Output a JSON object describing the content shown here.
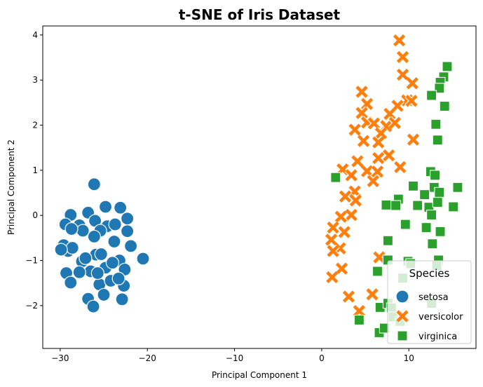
{
  "chart_data": {
    "type": "scatter",
    "title": "t-SNE of Iris Dataset",
    "xlabel": "Principal Component 1",
    "ylabel": "Principal Component 2",
    "xlim": [
      -32.0,
      17.7
    ],
    "ylim": [
      -2.95,
      4.2
    ],
    "xticks": [
      -30,
      -20,
      -10,
      0,
      10
    ],
    "xtick_labels": [
      "−30",
      "−20",
      "−10",
      "0",
      "10"
    ],
    "yticks": [
      -2,
      -1,
      0,
      1,
      2,
      3,
      4
    ],
    "ytick_labels": [
      "−2",
      "−1",
      "0",
      "1",
      "2",
      "3",
      "4"
    ],
    "grid": false,
    "legend": {
      "title": "Species",
      "position": "lower-right"
    },
    "series": [
      {
        "name": "setosa",
        "marker": "circle",
        "color": "#1f77b4",
        "points": [
          [
            -26.1,
            0.69
          ],
          [
            -28.8,
            0.01
          ],
          [
            -26.8,
            0.06
          ],
          [
            -24.8,
            0.19
          ],
          [
            -23.1,
            0.17
          ],
          [
            -29.4,
            -0.2
          ],
          [
            -27.8,
            -0.22
          ],
          [
            -26.0,
            -0.12
          ],
          [
            -24.6,
            -0.24
          ],
          [
            -22.3,
            -0.07
          ],
          [
            -27.4,
            -0.34
          ],
          [
            -25.4,
            -0.34
          ],
          [
            -23.7,
            -0.2
          ],
          [
            -22.3,
            -0.35
          ],
          [
            -26.1,
            -0.47
          ],
          [
            -28.7,
            -0.3
          ],
          [
            -29.1,
            -0.79
          ],
          [
            -29.6,
            -0.66
          ],
          [
            -28.6,
            -0.72
          ],
          [
            -27.5,
            -1.02
          ],
          [
            -25.9,
            -0.87
          ],
          [
            -25.3,
            -0.86
          ],
          [
            -23.8,
            -0.58
          ],
          [
            -21.9,
            -0.68
          ],
          [
            -20.5,
            -0.96
          ],
          [
            -23.2,
            -1.0
          ],
          [
            -22.6,
            -1.2
          ],
          [
            -24.8,
            -1.16
          ],
          [
            -26.5,
            -1.24
          ],
          [
            -27.8,
            -1.26
          ],
          [
            -29.3,
            -1.28
          ],
          [
            -28.8,
            -1.49
          ],
          [
            -25.5,
            -1.53
          ],
          [
            -24.2,
            -1.45
          ],
          [
            -22.7,
            -1.56
          ],
          [
            -23.3,
            -1.4
          ],
          [
            -25.0,
            -1.76
          ],
          [
            -26.8,
            -1.85
          ],
          [
            -26.2,
            -2.02
          ],
          [
            -22.9,
            -1.86
          ],
          [
            -29.9,
            -0.76
          ],
          [
            -25.7,
            -1.28
          ],
          [
            -24.0,
            -1.05
          ],
          [
            -27.1,
            -0.95
          ]
        ]
      },
      {
        "name": "versicolor",
        "marker": "x",
        "color": "#ff7f0e",
        "points": [
          [
            8.9,
            3.88
          ],
          [
            9.3,
            3.51
          ],
          [
            9.3,
            3.12
          ],
          [
            10.4,
            2.93
          ],
          [
            4.6,
            2.74
          ],
          [
            9.8,
            2.55
          ],
          [
            10.3,
            2.54
          ],
          [
            5.2,
            2.47
          ],
          [
            8.7,
            2.43
          ],
          [
            7.8,
            2.25
          ],
          [
            4.6,
            2.27
          ],
          [
            5.2,
            2.06
          ],
          [
            6.0,
            2.04
          ],
          [
            7.4,
            1.98
          ],
          [
            8.4,
            2.05
          ],
          [
            3.8,
            1.9
          ],
          [
            6.8,
            1.82
          ],
          [
            6.5,
            1.62
          ],
          [
            4.8,
            1.65
          ],
          [
            10.5,
            1.68
          ],
          [
            7.7,
            1.33
          ],
          [
            6.5,
            1.27
          ],
          [
            4.1,
            1.2
          ],
          [
            2.4,
            1.02
          ],
          [
            5.2,
            0.98
          ],
          [
            3.4,
            0.89
          ],
          [
            9.0,
            1.07
          ],
          [
            6.4,
            0.97
          ],
          [
            5.9,
            0.76
          ],
          [
            3.8,
            0.53
          ],
          [
            2.7,
            0.42
          ],
          [
            3.9,
            0.33
          ],
          [
            3.4,
            0.01
          ],
          [
            2.2,
            -0.03
          ],
          [
            1.3,
            -0.27
          ],
          [
            2.6,
            -0.37
          ],
          [
            1.1,
            -0.54
          ],
          [
            2.1,
            -0.73
          ],
          [
            1.3,
            -0.79
          ],
          [
            6.6,
            -0.93
          ],
          [
            2.3,
            -1.18
          ],
          [
            1.2,
            -1.37
          ],
          [
            3.1,
            -1.8
          ],
          [
            5.8,
            -1.75
          ],
          [
            4.3,
            -2.12
          ]
        ]
      },
      {
        "name": "virginica",
        "marker": "square",
        "color": "#2ca02c",
        "points": [
          [
            14.4,
            3.3
          ],
          [
            14.0,
            3.07
          ],
          [
            13.6,
            2.95
          ],
          [
            13.5,
            2.82
          ],
          [
            12.6,
            2.66
          ],
          [
            14.1,
            2.42
          ],
          [
            13.1,
            2.02
          ],
          [
            13.3,
            1.67
          ],
          [
            12.5,
            0.97
          ],
          [
            13.0,
            0.89
          ],
          [
            10.5,
            0.65
          ],
          [
            12.9,
            0.62
          ],
          [
            13.5,
            0.51
          ],
          [
            11.8,
            0.46
          ],
          [
            15.6,
            0.62
          ],
          [
            12.3,
            0.18
          ],
          [
            11.0,
            0.22
          ],
          [
            13.3,
            0.29
          ],
          [
            15.1,
            0.19
          ],
          [
            12.6,
            0.01
          ],
          [
            13.6,
            -0.36
          ],
          [
            12.0,
            -0.27
          ],
          [
            9.6,
            -0.2
          ],
          [
            12.7,
            -0.63
          ],
          [
            7.4,
            0.23
          ],
          [
            8.8,
            0.36
          ],
          [
            8.5,
            0.22
          ],
          [
            1.6,
            0.84
          ],
          [
            7.6,
            -0.56
          ],
          [
            9.9,
            -1.02
          ],
          [
            10.2,
            -1.07
          ],
          [
            13.4,
            -0.99
          ],
          [
            13.2,
            -1.12
          ],
          [
            7.6,
            -0.99
          ],
          [
            6.4,
            -1.24
          ],
          [
            9.3,
            -1.39
          ],
          [
            6.7,
            -2.04
          ],
          [
            7.6,
            -1.95
          ],
          [
            8.0,
            -2.05
          ],
          [
            8.2,
            -2.25
          ],
          [
            9.0,
            -2.35
          ],
          [
            4.3,
            -2.32
          ],
          [
            6.6,
            -2.6
          ],
          [
            7.2,
            -2.5
          ],
          [
            12.6,
            -1.95
          ]
        ]
      }
    ]
  }
}
